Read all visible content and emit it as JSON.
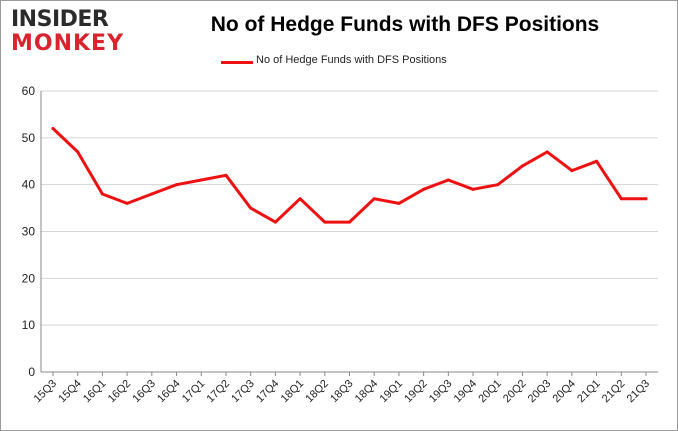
{
  "logo": {
    "line1": "INSIDER",
    "line2": "MONKEY"
  },
  "chart_data": {
    "type": "line",
    "title": "No of Hedge Funds with DFS Positions",
    "categories": [
      "15Q3",
      "15Q4",
      "16Q1",
      "16Q2",
      "16Q3",
      "16Q4",
      "17Q1",
      "17Q2",
      "17Q3",
      "17Q4",
      "18Q1",
      "18Q2",
      "18Q3",
      "18Q4",
      "19Q1",
      "19Q2",
      "19Q3",
      "19Q4",
      "20Q1",
      "20Q2",
      "20Q3",
      "20Q4",
      "21Q1",
      "21Q2",
      "21Q3"
    ],
    "series": [
      {
        "name": "No of Hedge Funds with DFS Positions",
        "values": [
          52,
          47,
          38,
          36,
          38,
          40,
          41,
          42,
          35,
          32,
          37,
          32,
          32,
          37,
          36,
          39,
          41,
          39,
          40,
          44,
          47,
          43,
          45,
          37,
          37
        ]
      }
    ],
    "ylim": [
      0,
      60
    ],
    "yticks": [
      0,
      10,
      20,
      30,
      40,
      50,
      60
    ],
    "grid": true,
    "legend": "top-center",
    "colors": {
      "series": "#ee1111",
      "grid": "#d4d4d4",
      "axis": "#888888"
    }
  }
}
